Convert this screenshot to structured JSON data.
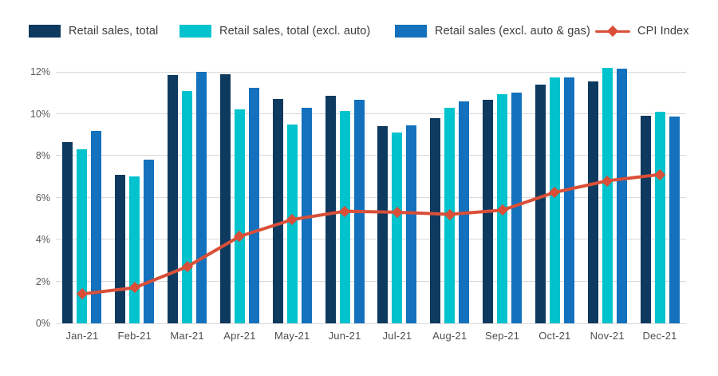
{
  "chart_data": {
    "type": "combo-bar-line",
    "title": "",
    "categories": [
      "Jan-21",
      "Feb-21",
      "Mar-21",
      "Apr-21",
      "May-21",
      "Jun-21",
      "Jul-21",
      "Aug-21",
      "Sep-21",
      "Oct-21",
      "Nov-21",
      "Dec-21"
    ],
    "series": [
      {
        "name": "Retail sales, total",
        "type": "bar",
        "color": "#0e3a5f",
        "values": [
          8.65,
          7.1,
          11.85,
          11.9,
          10.7,
          10.85,
          9.4,
          9.8,
          10.65,
          11.4,
          11.55,
          9.9
        ]
      },
      {
        "name": "Retail sales, total (excl. auto)",
        "type": "bar",
        "color": "#00c3cd",
        "values": [
          8.3,
          7.0,
          11.1,
          10.2,
          9.5,
          10.15,
          9.1,
          10.3,
          10.95,
          11.75,
          12.2,
          10.1
        ]
      },
      {
        "name": "Retail sales (excl. auto & gas)",
        "type": "bar",
        "color": "#1371bd",
        "values": [
          9.2,
          7.8,
          12.0,
          11.25,
          10.3,
          10.65,
          9.45,
          10.6,
          11.0,
          11.75,
          12.15,
          9.85
        ]
      },
      {
        "name": "CPI Index",
        "type": "line",
        "color": "#d94f38",
        "values": [
          1.4,
          1.7,
          2.7,
          4.15,
          4.95,
          5.35,
          5.3,
          5.2,
          5.4,
          6.25,
          6.8,
          7.1
        ]
      }
    ],
    "y_ticks": [
      {
        "label": "12%",
        "value": 12
      },
      {
        "label": "10%",
        "value": 10
      },
      {
        "label": "8%",
        "value": 8
      },
      {
        "label": "6%",
        "value": 6
      },
      {
        "label": "4%",
        "value": 4
      },
      {
        "label": "2%",
        "value": 2
      },
      {
        "label": "0%",
        "value": 0
      }
    ],
    "ylim": [
      0,
      12
    ],
    "xlabel": "",
    "ylabel": "",
    "grid": true,
    "legend_position": "top"
  },
  "colors": {
    "gridline": "#d9d9d9",
    "axis_text": "#595959",
    "legend_text": "#3d3d3d",
    "background": "#ffffff"
  }
}
